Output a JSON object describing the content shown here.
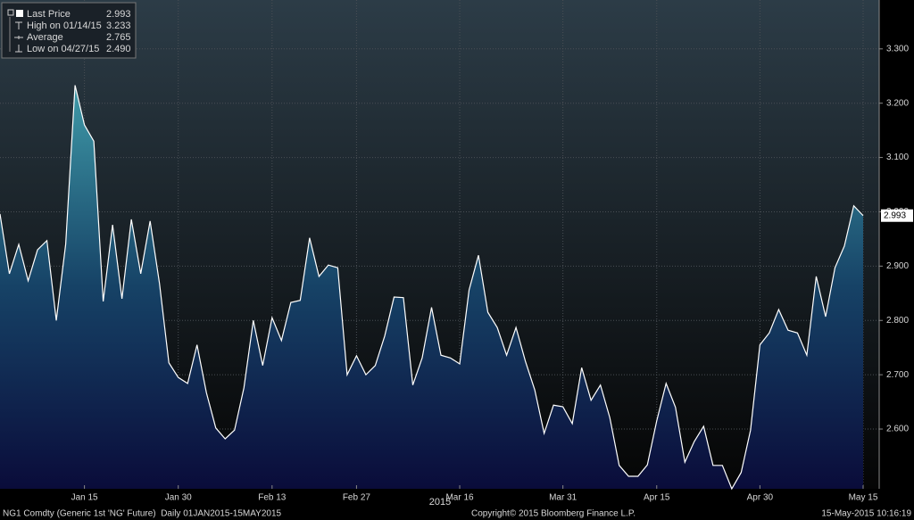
{
  "chart_data": {
    "type": "area-line",
    "legend": [
      {
        "label": "Last Price",
        "value": "2.993"
      },
      {
        "label": "High on 01/14/15",
        "value": "3.233"
      },
      {
        "label": "Average",
        "value": "2.765"
      },
      {
        "label": "Low on 04/27/15",
        "value": "2.490"
      }
    ],
    "last_value_label": "2.993",
    "x": [
      "2015-01-02",
      "2015-01-05",
      "2015-01-06",
      "2015-01-07",
      "2015-01-08",
      "2015-01-09",
      "2015-01-12",
      "2015-01-13",
      "2015-01-14",
      "2015-01-15",
      "2015-01-16",
      "2015-01-20",
      "2015-01-21",
      "2015-01-22",
      "2015-01-23",
      "2015-01-26",
      "2015-01-27",
      "2015-01-28",
      "2015-01-29",
      "2015-01-30",
      "2015-02-02",
      "2015-02-03",
      "2015-02-04",
      "2015-02-05",
      "2015-02-06",
      "2015-02-09",
      "2015-02-10",
      "2015-02-11",
      "2015-02-12",
      "2015-02-13",
      "2015-02-17",
      "2015-02-18",
      "2015-02-19",
      "2015-02-20",
      "2015-02-23",
      "2015-02-24",
      "2015-02-25",
      "2015-02-26",
      "2015-02-27",
      "2015-03-02",
      "2015-03-03",
      "2015-03-04",
      "2015-03-05",
      "2015-03-06",
      "2015-03-09",
      "2015-03-10",
      "2015-03-11",
      "2015-03-12",
      "2015-03-13",
      "2015-03-16",
      "2015-03-17",
      "2015-03-18",
      "2015-03-19",
      "2015-03-20",
      "2015-03-23",
      "2015-03-24",
      "2015-03-25",
      "2015-03-26",
      "2015-03-27",
      "2015-03-30",
      "2015-03-31",
      "2015-04-01",
      "2015-04-02",
      "2015-04-06",
      "2015-04-07",
      "2015-04-08",
      "2015-04-09",
      "2015-04-10",
      "2015-04-13",
      "2015-04-14",
      "2015-04-15",
      "2015-04-16",
      "2015-04-17",
      "2015-04-20",
      "2015-04-21",
      "2015-04-22",
      "2015-04-23",
      "2015-04-24",
      "2015-04-27",
      "2015-04-28",
      "2015-04-29",
      "2015-04-30",
      "2015-05-01",
      "2015-05-04",
      "2015-05-05",
      "2015-05-06",
      "2015-05-07",
      "2015-05-08",
      "2015-05-11",
      "2015-05-12",
      "2015-05-13",
      "2015-05-14",
      "2015-05-15"
    ],
    "series": [
      {
        "color": "#ffffff",
        "values": [
          2.996,
          2.886,
          2.94,
          2.873,
          2.93,
          2.947,
          2.8,
          2.94,
          3.233,
          3.16,
          3.13,
          2.835,
          2.976,
          2.84,
          2.986,
          2.886,
          2.983,
          2.868,
          2.722,
          2.695,
          2.684,
          2.755,
          2.667,
          2.602,
          2.582,
          2.598,
          2.676,
          2.8,
          2.717,
          2.805,
          2.763,
          2.833,
          2.837,
          2.952,
          2.881,
          2.902,
          2.897,
          2.7,
          2.735,
          2.7,
          2.717,
          2.771,
          2.843,
          2.842,
          2.681,
          2.731,
          2.824,
          2.736,
          2.731,
          2.72,
          2.856,
          2.92,
          2.815,
          2.787,
          2.736,
          2.787,
          2.725,
          2.672,
          2.592,
          2.644,
          2.641,
          2.61,
          2.713,
          2.653,
          2.681,
          2.621,
          2.533,
          2.513,
          2.513,
          2.534,
          2.615,
          2.684,
          2.64,
          2.539,
          2.577,
          2.605,
          2.533,
          2.533,
          2.49,
          2.52,
          2.598,
          2.755,
          2.777,
          2.82,
          2.782,
          2.777,
          2.736,
          2.881,
          2.807,
          2.897,
          2.937,
          3.011,
          2.993
        ]
      }
    ],
    "xticks": [
      {
        "value": "2015-01-15",
        "label": "Jan 15"
      },
      {
        "value": "2015-01-30",
        "label": "Jan 30"
      },
      {
        "value": "2015-02-13",
        "label": "Feb 13"
      },
      {
        "value": "2015-02-27",
        "label": "Feb 27"
      },
      {
        "value": "2015-03-16",
        "label": "Mar 16"
      },
      {
        "value": "2015-03-31",
        "label": "Mar 31"
      },
      {
        "value": "2015-04-15",
        "label": "Apr 15"
      },
      {
        "value": "2015-04-30",
        "label": "Apr 30"
      },
      {
        "value": "2015-05-15",
        "label": "May 15"
      }
    ],
    "year_label": "2015",
    "ylim": [
      2.49,
      3.39
    ],
    "yticks": [
      {
        "value": 2.6,
        "label": "2.600"
      },
      {
        "value": 2.7,
        "label": "2.700"
      },
      {
        "value": 2.8,
        "label": "2.800"
      },
      {
        "value": 2.9,
        "label": "2.900"
      },
      {
        "value": 3.0,
        "label": "3.000"
      },
      {
        "value": 3.1,
        "label": "3.100"
      },
      {
        "value": 3.2,
        "label": "3.200"
      },
      {
        "value": 3.3,
        "label": "3.300"
      }
    ],
    "grid": true,
    "footer": {
      "left": "NG1 Comdty (Generic 1st 'NG' Future)  Daily 01JAN2015-15MAY2015",
      "center": "Copyright© 2015 Bloomberg Finance L.P.",
      "right": "15-May-2015 10:16:19"
    }
  }
}
